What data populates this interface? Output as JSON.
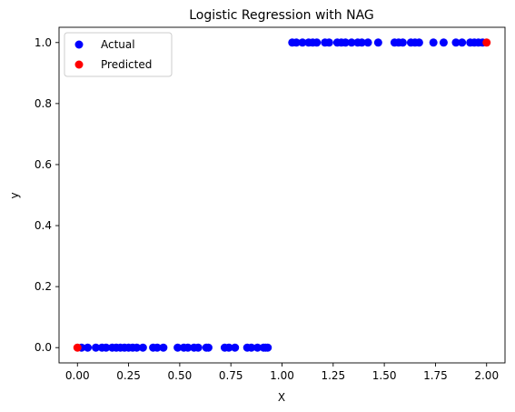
{
  "chart_data": {
    "type": "scatter",
    "title": "Logistic Regression with NAG",
    "xlabel": "X",
    "ylabel": "y",
    "xlim": [
      -0.09,
      2.09
    ],
    "ylim": [
      -0.05,
      1.05
    ],
    "xticks": [
      "0.00",
      "0.25",
      "0.50",
      "0.75",
      "1.00",
      "1.25",
      "1.50",
      "1.75",
      "2.00"
    ],
    "yticks": [
      "0.0",
      "0.2",
      "0.4",
      "0.6",
      "0.8",
      "1.0"
    ],
    "legend": {
      "placement": "top-left"
    },
    "series": [
      {
        "name": "Actual",
        "color": "#0000ff",
        "points": [
          [
            0.02,
            0
          ],
          [
            0.05,
            0
          ],
          [
            0.09,
            0
          ],
          [
            0.12,
            0
          ],
          [
            0.14,
            0
          ],
          [
            0.17,
            0
          ],
          [
            0.19,
            0
          ],
          [
            0.21,
            0
          ],
          [
            0.23,
            0
          ],
          [
            0.25,
            0
          ],
          [
            0.27,
            0
          ],
          [
            0.29,
            0
          ],
          [
            0.32,
            0
          ],
          [
            0.37,
            0
          ],
          [
            0.39,
            0
          ],
          [
            0.42,
            0
          ],
          [
            0.49,
            0
          ],
          [
            0.52,
            0
          ],
          [
            0.54,
            0
          ],
          [
            0.57,
            0
          ],
          [
            0.59,
            0
          ],
          [
            0.63,
            0
          ],
          [
            0.64,
            0
          ],
          [
            0.72,
            0
          ],
          [
            0.74,
            0
          ],
          [
            0.77,
            0
          ],
          [
            0.83,
            0
          ],
          [
            0.85,
            0
          ],
          [
            0.88,
            0
          ],
          [
            0.91,
            0
          ],
          [
            0.92,
            0
          ],
          [
            0.93,
            0
          ],
          [
            1.05,
            1
          ],
          [
            1.07,
            1
          ],
          [
            1.1,
            1
          ],
          [
            1.13,
            1
          ],
          [
            1.15,
            1
          ],
          [
            1.17,
            1
          ],
          [
            1.21,
            1
          ],
          [
            1.23,
            1
          ],
          [
            1.27,
            1
          ],
          [
            1.29,
            1
          ],
          [
            1.31,
            1
          ],
          [
            1.34,
            1
          ],
          [
            1.37,
            1
          ],
          [
            1.39,
            1
          ],
          [
            1.42,
            1
          ],
          [
            1.47,
            1
          ],
          [
            1.55,
            1
          ],
          [
            1.57,
            1
          ],
          [
            1.59,
            1
          ],
          [
            1.63,
            1
          ],
          [
            1.65,
            1
          ],
          [
            1.67,
            1
          ],
          [
            1.74,
            1
          ],
          [
            1.79,
            1
          ],
          [
            1.85,
            1
          ],
          [
            1.88,
            1
          ],
          [
            1.92,
            1
          ],
          [
            1.94,
            1
          ],
          [
            1.96,
            1
          ],
          [
            1.98,
            1
          ]
        ]
      },
      {
        "name": "Predicted",
        "color": "#ff0000",
        "points": [
          [
            0.0,
            0
          ],
          [
            2.0,
            1
          ]
        ]
      }
    ]
  }
}
